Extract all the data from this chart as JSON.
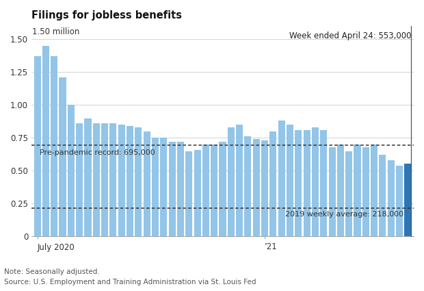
{
  "title": "Filings for jobless benefits",
  "note": "Note: Seasonally adjusted.",
  "source": "Source: U.S. Employment and Training Administration via St. Louis Fed",
  "annotation_top": "Week ended April 24: 553,000",
  "annotation_prepandemic": "Pre-pandemic record: 695,000",
  "annotation_2019": "2019 weekly average: 218,000",
  "ylabel_top": "1.50 million",
  "pre_pandemic_level": 0.695,
  "avg_2019_level": 0.218,
  "bar_color": "#92c5e8",
  "last_bar_color": "#2e75b6",
  "values": [
    1.37,
    1.45,
    1.37,
    1.21,
    1.0,
    0.86,
    0.9,
    0.86,
    0.86,
    0.86,
    0.85,
    0.84,
    0.83,
    0.8,
    0.75,
    0.75,
    0.72,
    0.72,
    0.65,
    0.66,
    0.7,
    0.7,
    0.72,
    0.83,
    0.85,
    0.76,
    0.74,
    0.73,
    0.8,
    0.88,
    0.85,
    0.81,
    0.81,
    0.83,
    0.81,
    0.68,
    0.7,
    0.65,
    0.7,
    0.68,
    0.7,
    0.62,
    0.58,
    0.54,
    0.553
  ],
  "ylim": [
    0,
    1.6
  ],
  "yticks": [
    0,
    0.25,
    0.5,
    0.75,
    1.0,
    1.25,
    1.5
  ],
  "ytick_labels": [
    "0",
    "0.25",
    "0.50",
    "0.75",
    "1.00",
    "1.25",
    "1.50"
  ],
  "xtick_bar_indices": [
    0,
    27
  ],
  "xtick_labels": [
    "July 2020",
    "’21"
  ],
  "title_fontsize": 10.5,
  "annotation_fontsize": 8.5,
  "ref_label_fontsize": 8.0,
  "note_fontsize": 7.5
}
